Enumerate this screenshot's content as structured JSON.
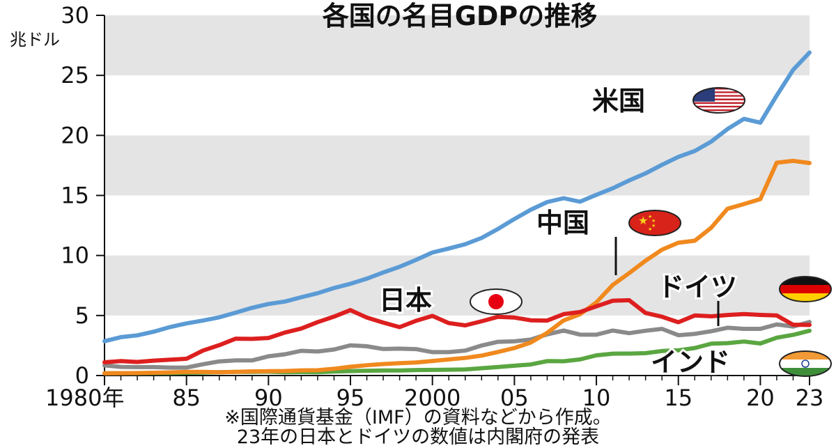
{
  "chart_data": {
    "type": "line",
    "title": "各国の名目GDPの推移",
    "ylabel": "兆ドル",
    "ylim": [
      0,
      30
    ],
    "yticks": [
      0,
      5,
      10,
      15,
      20,
      25,
      30
    ],
    "xlim": [
      1980,
      2023
    ],
    "xticks": [
      {
        "year": 1980,
        "label": "1980年"
      },
      {
        "year": 1985,
        "label": "85"
      },
      {
        "year": 1990,
        "label": "90"
      },
      {
        "year": 1995,
        "label": "95"
      },
      {
        "year": 2000,
        "label": "2000"
      },
      {
        "year": 2005,
        "label": "05"
      },
      {
        "year": 2010,
        "label": "10"
      },
      {
        "year": 2015,
        "label": "15"
      },
      {
        "year": 2020,
        "label": "20"
      },
      {
        "year": 2023,
        "label": "23"
      }
    ],
    "grid": "alternating gray horizontal bands",
    "x": [
      1980,
      1981,
      1982,
      1983,
      1984,
      1985,
      1986,
      1987,
      1988,
      1989,
      1990,
      1991,
      1992,
      1993,
      1994,
      1995,
      1996,
      1997,
      1998,
      1999,
      2000,
      2001,
      2002,
      2003,
      2004,
      2005,
      2006,
      2007,
      2008,
      2009,
      2010,
      2011,
      2012,
      2013,
      2014,
      2015,
      2016,
      2017,
      2018,
      2019,
      2020,
      2021,
      2022,
      2023
    ],
    "series": [
      {
        "name": "米国",
        "color": "#5b9bd5",
        "flag": "us-flag",
        "values": [
          2.86,
          3.2,
          3.35,
          3.65,
          4.04,
          4.34,
          4.58,
          4.85,
          5.24,
          5.64,
          5.96,
          6.16,
          6.52,
          6.86,
          7.29,
          7.64,
          8.07,
          8.58,
          9.06,
          9.63,
          10.25,
          10.58,
          10.94,
          11.46,
          12.21,
          13.04,
          13.81,
          14.45,
          14.77,
          14.48,
          15.05,
          15.6,
          16.25,
          16.84,
          17.55,
          18.21,
          18.7,
          19.48,
          20.53,
          21.38,
          21.06,
          23.32,
          25.46,
          26.9
        ]
      },
      {
        "name": "中国",
        "color": "#f0891e",
        "flag": "china-flag",
        "values": [
          0.19,
          0.2,
          0.21,
          0.23,
          0.26,
          0.31,
          0.3,
          0.27,
          0.31,
          0.35,
          0.36,
          0.38,
          0.43,
          0.44,
          0.56,
          0.73,
          0.86,
          0.96,
          1.03,
          1.09,
          1.21,
          1.34,
          1.47,
          1.66,
          1.96,
          2.29,
          2.75,
          3.55,
          4.59,
          5.1,
          6.09,
          7.55,
          8.53,
          9.57,
          10.48,
          11.06,
          11.23,
          12.31,
          13.89,
          14.28,
          14.69,
          17.73,
          17.88,
          17.7
        ]
      },
      {
        "name": "日本",
        "color": "#dd1f1f",
        "flag": "japan-flag",
        "values": [
          1.1,
          1.2,
          1.13,
          1.24,
          1.32,
          1.4,
          2.08,
          2.53,
          3.07,
          3.05,
          3.13,
          3.58,
          3.91,
          4.45,
          4.91,
          5.45,
          4.83,
          4.41,
          4.03,
          4.56,
          4.97,
          4.37,
          4.18,
          4.52,
          4.89,
          4.83,
          4.6,
          4.58,
          5.11,
          5.29,
          5.76,
          6.23,
          6.27,
          5.21,
          4.9,
          4.44,
          5.0,
          4.93,
          5.04,
          5.12,
          5.05,
          5.0,
          4.23,
          4.21
        ]
      },
      {
        "name": "ドイツ",
        "color": "#8a8a8a",
        "flag": "germany-flag",
        "values": [
          0.85,
          0.72,
          0.7,
          0.7,
          0.66,
          0.66,
          0.94,
          1.18,
          1.26,
          1.26,
          1.6,
          1.77,
          2.06,
          2.0,
          2.17,
          2.52,
          2.44,
          2.21,
          2.24,
          2.2,
          1.95,
          1.95,
          2.08,
          2.5,
          2.81,
          2.85,
          3.0,
          3.43,
          3.75,
          3.41,
          3.4,
          3.75,
          3.53,
          3.73,
          3.89,
          3.36,
          3.47,
          3.69,
          3.98,
          3.89,
          3.89,
          4.26,
          4.08,
          4.46
        ]
      },
      {
        "name": "インド",
        "color": "#5aa641",
        "flag": "india-flag",
        "values": [
          0.19,
          0.2,
          0.2,
          0.22,
          0.21,
          0.23,
          0.25,
          0.27,
          0.3,
          0.3,
          0.32,
          0.27,
          0.29,
          0.28,
          0.33,
          0.37,
          0.4,
          0.42,
          0.42,
          0.46,
          0.47,
          0.49,
          0.51,
          0.61,
          0.71,
          0.82,
          0.92,
          1.2,
          1.19,
          1.34,
          1.68,
          1.82,
          1.83,
          1.86,
          2.04,
          2.1,
          2.29,
          2.65,
          2.7,
          2.83,
          2.67,
          3.15,
          3.39,
          3.73
        ]
      }
    ]
  },
  "footnotes": [
    "※国際通貨基金（IMF）の資料などから作成。",
    "23年の日本とドイツの数値は内閣府の発表"
  ]
}
